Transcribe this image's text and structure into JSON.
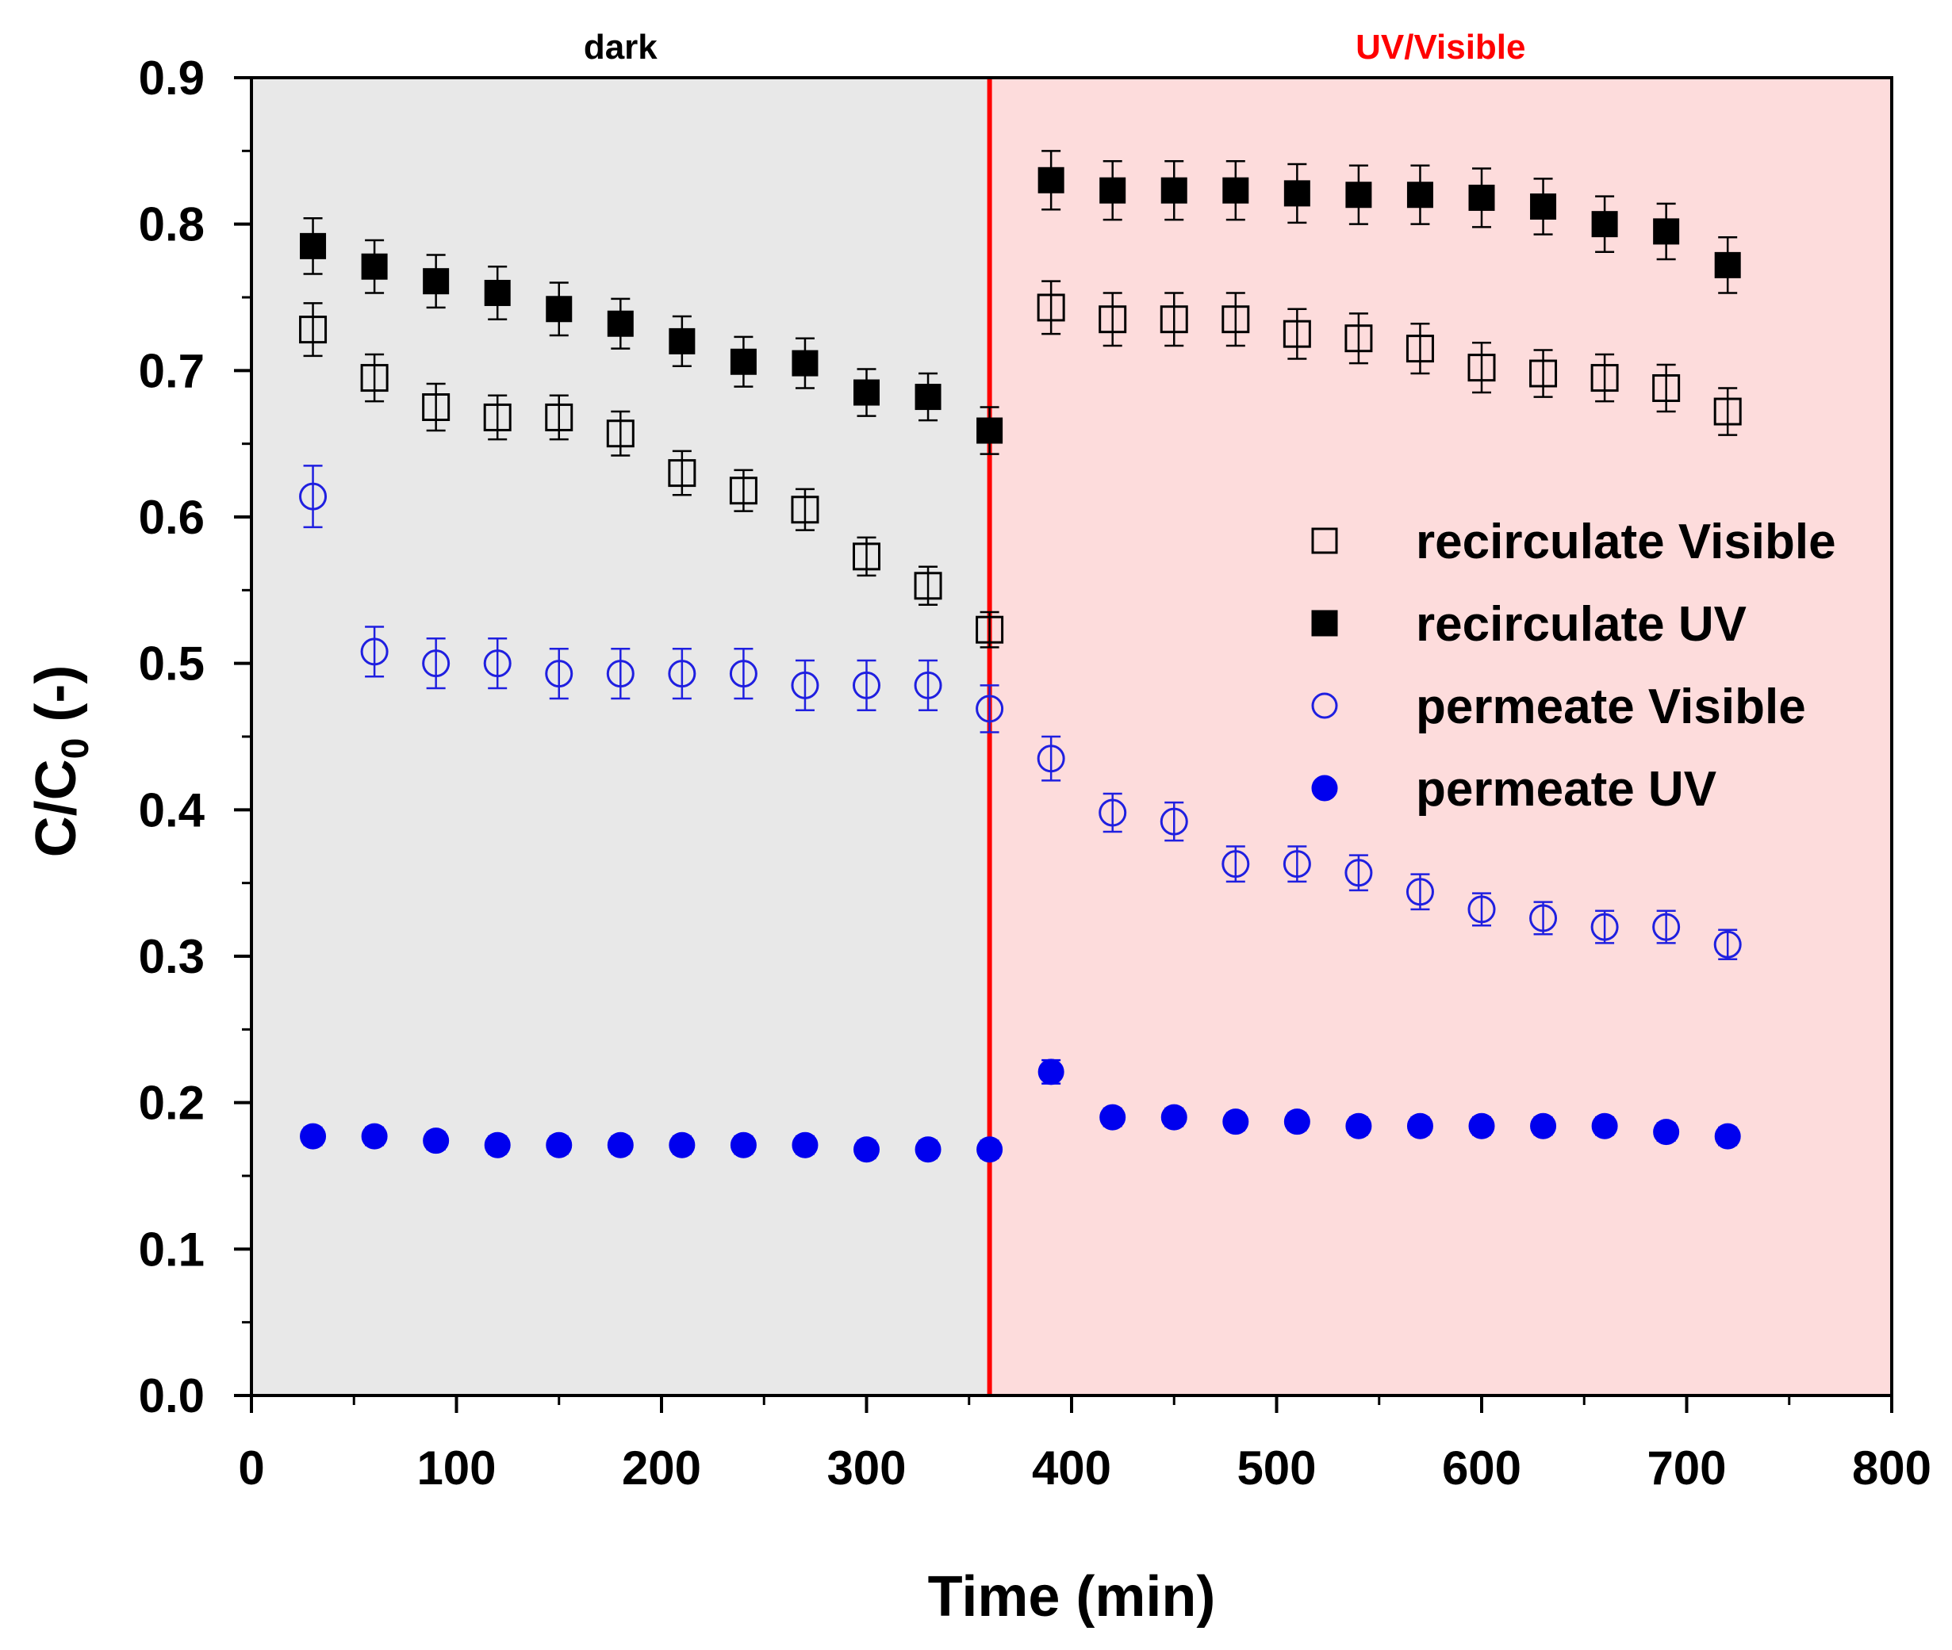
{
  "chart_data": {
    "type": "scatter",
    "title": "",
    "xlabel": "Time (min)",
    "ylabel": "C/C0 (-)",
    "ylabel_main": "C/C",
    "ylabel_sub": "0",
    "ylabel_suffix": " (-)",
    "xlim": [
      0,
      800
    ],
    "ylim": [
      0.0,
      0.9
    ],
    "xticks": [
      0,
      100,
      200,
      300,
      400,
      500,
      600,
      700,
      800
    ],
    "yticks": [
      0.0,
      0.1,
      0.2,
      0.3,
      0.4,
      0.5,
      0.6,
      0.7,
      0.8,
      0.9
    ],
    "xtick_labels": [
      "0",
      "100",
      "200",
      "300",
      "400",
      "500",
      "600",
      "700",
      "800"
    ],
    "ytick_labels": [
      "0.0",
      "0.1",
      "0.2",
      "0.3",
      "0.4",
      "0.5",
      "0.6",
      "0.7",
      "0.8",
      "0.9"
    ],
    "grid": false,
    "legend_position": "center-right",
    "regions": [
      {
        "label": "dark",
        "x_start": 0,
        "x_end": 360,
        "color": "#e8e8e8",
        "label_color": "#000000"
      },
      {
        "label": "UV/Visible",
        "x_start": 360,
        "x_end": 800,
        "color": "#fddcdc",
        "label_color": "#ff0000"
      }
    ],
    "divider": {
      "x": 360,
      "color": "#ff0000"
    },
    "x": [
      30,
      60,
      90,
      120,
      150,
      180,
      210,
      240,
      270,
      300,
      330,
      360,
      390,
      420,
      450,
      480,
      510,
      540,
      570,
      600,
      630,
      660,
      690,
      720
    ],
    "series": [
      {
        "name": "recirculate Visible",
        "marker": "square",
        "filled": false,
        "color": "#000000",
        "values": [
          0.728,
          0.695,
          0.675,
          0.668,
          0.668,
          0.657,
          0.63,
          0.618,
          0.605,
          0.573,
          0.553,
          0.523,
          0.743,
          0.735,
          0.735,
          0.735,
          0.725,
          0.722,
          0.715,
          0.702,
          0.698,
          0.695,
          0.688,
          0.672
        ],
        "errors": [
          0.018,
          0.016,
          0.016,
          0.015,
          0.015,
          0.015,
          0.015,
          0.014,
          0.014,
          0.013,
          0.013,
          0.012,
          0.018,
          0.018,
          0.018,
          0.018,
          0.017,
          0.017,
          0.017,
          0.017,
          0.016,
          0.016,
          0.016,
          0.016
        ]
      },
      {
        "name": "recirculate UV",
        "marker": "square",
        "filled": true,
        "color": "#000000",
        "values": [
          0.785,
          0.771,
          0.761,
          0.753,
          0.742,
          0.732,
          0.72,
          0.706,
          0.705,
          0.685,
          0.682,
          0.659,
          0.83,
          0.823,
          0.823,
          0.823,
          0.821,
          0.82,
          0.82,
          0.818,
          0.812,
          0.8,
          0.795,
          0.772
        ],
        "errors": [
          0.019,
          0.018,
          0.018,
          0.018,
          0.018,
          0.017,
          0.017,
          0.017,
          0.017,
          0.016,
          0.016,
          0.016,
          0.02,
          0.02,
          0.02,
          0.02,
          0.02,
          0.02,
          0.02,
          0.02,
          0.019,
          0.019,
          0.019,
          0.019
        ]
      },
      {
        "name": "permeate Visible",
        "marker": "circle",
        "filled": false,
        "color": "#1f1fe0",
        "values": [
          0.614,
          0.508,
          0.5,
          0.5,
          0.493,
          0.493,
          0.493,
          0.493,
          0.485,
          0.485,
          0.485,
          0.469,
          0.435,
          0.398,
          0.392,
          0.363,
          0.363,
          0.357,
          0.344,
          0.332,
          0.326,
          0.32,
          0.32,
          0.308
        ],
        "errors": [
          0.021,
          0.017,
          0.017,
          0.017,
          0.017,
          0.017,
          0.017,
          0.017,
          0.017,
          0.017,
          0.017,
          0.016,
          0.015,
          0.013,
          0.013,
          0.012,
          0.012,
          0.012,
          0.012,
          0.011,
          0.011,
          0.011,
          0.011,
          0.01
        ]
      },
      {
        "name": "permeate UV",
        "marker": "circle",
        "filled": true,
        "color": "#0000ee",
        "values": [
          0.177,
          0.177,
          0.174,
          0.171,
          0.171,
          0.171,
          0.171,
          0.171,
          0.171,
          0.168,
          0.168,
          0.168,
          0.221,
          0.19,
          0.19,
          0.187,
          0.187,
          0.184,
          0.184,
          0.184,
          0.184,
          0.184,
          0.18,
          0.177
        ],
        "errors": [
          0.006,
          0.006,
          0.006,
          0.006,
          0.006,
          0.006,
          0.006,
          0.006,
          0.006,
          0.006,
          0.006,
          0.006,
          0.008,
          0.006,
          0.006,
          0.006,
          0.006,
          0.006,
          0.006,
          0.006,
          0.006,
          0.006,
          0.006,
          0.006
        ]
      }
    ]
  }
}
